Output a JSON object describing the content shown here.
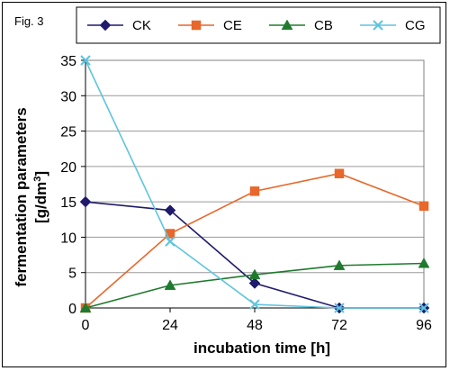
{
  "figure_label": "Fig. 3",
  "chart_data": {
    "type": "line",
    "title": "",
    "xlabel": "incubation time [h]",
    "ylabel": "fermentation parameters",
    "ylabel_unit_prefix": "[g/dm",
    "ylabel_unit_sup": "3",
    "ylabel_unit_suffix": "]",
    "x": [
      0,
      24,
      48,
      72,
      96
    ],
    "x_ticks": [
      "0",
      "24",
      "48",
      "72",
      "96"
    ],
    "y_ticks": [
      "0",
      "5",
      "10",
      "15",
      "20",
      "25",
      "30",
      "35"
    ],
    "xlim": [
      0,
      96
    ],
    "ylim": [
      0,
      35
    ],
    "grid": "horizontal",
    "legend_position": "top",
    "series": [
      {
        "name": "CK",
        "color": "#1f1a6b",
        "marker": "diamond",
        "values": [
          15.0,
          13.8,
          3.5,
          0.0,
          0.0
        ]
      },
      {
        "name": "CE",
        "color": "#e8672a",
        "marker": "square",
        "values": [
          0.0,
          10.5,
          16.5,
          19.0,
          14.4
        ]
      },
      {
        "name": "CB",
        "color": "#1f7a2e",
        "marker": "triangle",
        "values": [
          0.0,
          3.2,
          4.7,
          6.0,
          6.3
        ]
      },
      {
        "name": "CG",
        "color": "#5ec4de",
        "marker": "x",
        "values": [
          35.0,
          9.4,
          0.5,
          0.0,
          0.0
        ]
      }
    ]
  }
}
